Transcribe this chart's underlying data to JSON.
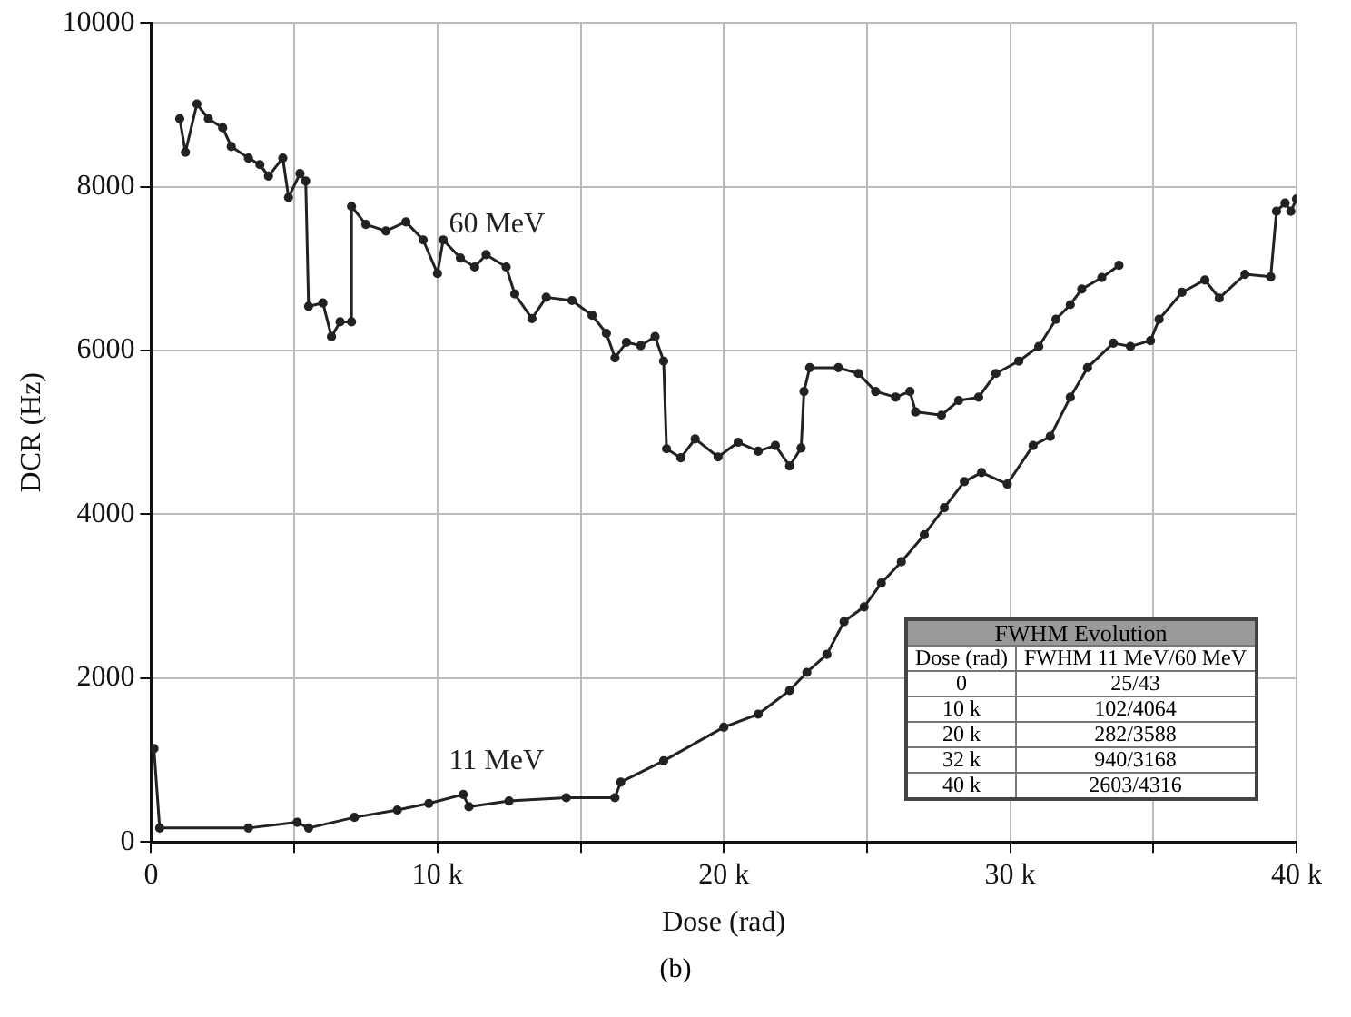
{
  "chart_data": {
    "type": "line",
    "xlabel": "Dose (rad)",
    "ylabel": "DCR (Hz)",
    "xlim": [
      0,
      40000
    ],
    "ylim": [
      0,
      10000
    ],
    "xticks": [
      {
        "value": 0,
        "label": "0"
      },
      {
        "value": 5000,
        "label": null
      },
      {
        "value": 10000,
        "label": "10 k"
      },
      {
        "value": 15000,
        "label": null
      },
      {
        "value": 20000,
        "label": "20 k"
      },
      {
        "value": 25000,
        "label": null
      },
      {
        "value": 30000,
        "label": "30 k"
      },
      {
        "value": 35000,
        "label": null
      },
      {
        "value": 40000,
        "label": "40 k"
      }
    ],
    "yticks": [
      0,
      2000,
      4000,
      6000,
      8000,
      10000
    ],
    "grid": true,
    "legend": false,
    "marker": "circle",
    "line_style": "solid",
    "series": [
      {
        "name": "60 MeV",
        "color": "#222222",
        "x": [
          1000,
          1200,
          1600,
          2000,
          2500,
          2800,
          3400,
          3800,
          4100,
          4600,
          4800,
          5200,
          5400,
          5500,
          6000,
          6300,
          6600,
          7000,
          7000,
          7500,
          8200,
          8900,
          9500,
          10000,
          10200,
          10800,
          11300,
          11700,
          12400,
          12700,
          13300,
          13800,
          14700,
          15400,
          15900,
          16200,
          16600,
          17100,
          17600,
          17900,
          18000,
          18500,
          19000,
          19800,
          20500,
          21200,
          21800,
          22300,
          22700,
          22800,
          23000,
          24000,
          24700,
          25300,
          26000,
          26500,
          26700,
          27600,
          28200,
          28900,
          29500,
          30300,
          31000,
          31600,
          32100,
          32500,
          33200,
          33800
        ],
        "values": [
          8830,
          8420,
          9010,
          8830,
          8720,
          8490,
          8350,
          8270,
          8130,
          8350,
          7870,
          8160,
          8070,
          6540,
          6580,
          6170,
          6350,
          6350,
          7760,
          7540,
          7460,
          7570,
          7350,
          6940,
          7350,
          7130,
          7020,
          7170,
          7020,
          6690,
          6390,
          6650,
          6610,
          6430,
          6210,
          5910,
          6100,
          6060,
          6170,
          5870,
          4800,
          4690,
          4920,
          4700,
          4880,
          4770,
          4840,
          4590,
          4810,
          5500,
          5790,
          5790,
          5720,
          5500,
          5430,
          5500,
          5250,
          5210,
          5390,
          5430,
          5720,
          5870,
          6050,
          6380,
          6560,
          6750,
          6890,
          7040
        ]
      },
      {
        "name": "11 MeV",
        "color": "#222222",
        "x": [
          100,
          300,
          3400,
          5100,
          5500,
          7100,
          8600,
          9700,
          10900,
          11100,
          12500,
          14500,
          16200,
          16400,
          17900,
          20000,
          21200,
          22300,
          22900,
          23600,
          24200,
          24900,
          25500,
          26200,
          27000,
          27700,
          28400,
          29000,
          29900,
          30800,
          31400,
          32100,
          32700,
          33600,
          34200,
          34900,
          35200,
          36000,
          36800,
          37300,
          38200,
          39100,
          39300,
          39600,
          39800,
          40000
        ],
        "values": [
          1140,
          170,
          170,
          240,
          170,
          300,
          390,
          470,
          580,
          430,
          500,
          540,
          540,
          730,
          990,
          1400,
          1560,
          1850,
          2070,
          2290,
          2690,
          2870,
          3160,
          3420,
          3750,
          4080,
          4400,
          4510,
          4370,
          4840,
          4950,
          5430,
          5790,
          6090,
          6050,
          6120,
          6380,
          6710,
          6860,
          6640,
          6930,
          6900,
          7700,
          7800,
          7700,
          7850
        ]
      }
    ],
    "annotations": [
      "FWHM Evolution",
      "Dose (rad)",
      "FWHM 11 MeV/60 MeV",
      "0",
      "25/43",
      "10 k",
      "102/4064",
      "20 k",
      "282/3588",
      "32 k",
      "940/3168",
      "40 k",
      "2603/4316",
      "(b)"
    ]
  }
}
